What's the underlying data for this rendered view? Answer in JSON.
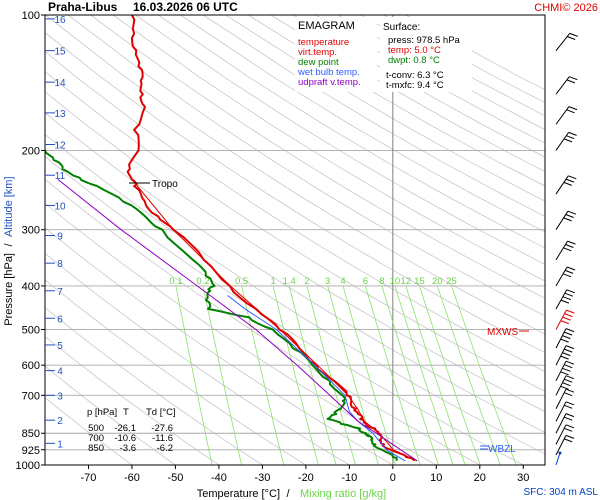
{
  "header": {
    "station": "Praha-Libus",
    "datetime": "16.03.2026 06 UTC",
    "credit": "CHMI© 2026"
  },
  "legend": {
    "title": "EMAGRAM",
    "items": [
      {
        "label": "temperature",
        "color": "#e00000"
      },
      {
        "label": "virt.temp.",
        "color": "#e00000"
      },
      {
        "label": "dew point",
        "color": "#008000"
      },
      {
        "label": "wet bulb temp.",
        "color": "#3060ff"
      },
      {
        "label": "udpraft v.temp.",
        "color": "#9000c0"
      }
    ]
  },
  "surface": {
    "title": "Surface:",
    "press": "press: 978.5 hPa",
    "temp": "temp: 5.0 °C",
    "dwpt": "dwpt: 0.8 °C",
    "tconv": "t-conv: 6.3 °C",
    "tmxfc": "t-mxfc: 9.4 °C"
  },
  "table": {
    "header": [
      "p [hPa]",
      "T",
      "Td [°C]"
    ],
    "rows": [
      [
        "500",
        "-26.1",
        "-27.6"
      ],
      [
        "700",
        "-10.6",
        "-11.6"
      ],
      [
        "850",
        "-3.6",
        "-6.2"
      ]
    ]
  },
  "annotations": {
    "tropo": "Tropo",
    "mxws": "MXWS",
    "wbzl": "WBZL",
    "sfc": "SFC: 304 m ASL"
  },
  "chart_data": {
    "type": "line",
    "title": "EMAGRAM",
    "xlabel": "Temperature [°C]",
    "xlabel2": "Mixing ratio [g/kg]",
    "ylabel": "Pressure [hPa]",
    "ylabel2": "Altitude [km]",
    "separator": "/",
    "xlim": [
      -80,
      35
    ],
    "ylim": [
      1000,
      100
    ],
    "x_ticks": [
      -70,
      -60,
      -50,
      -40,
      -30,
      -20,
      -10,
      0,
      10,
      20,
      30
    ],
    "pressure_ticks": [
      100,
      200,
      300,
      400,
      500,
      600,
      700,
      850,
      925,
      1000
    ],
    "altitude_ticks": [
      {
        "km": 1,
        "p": 895
      },
      {
        "km": 2,
        "p": 795
      },
      {
        "km": 3,
        "p": 700
      },
      {
        "km": 4,
        "p": 617
      },
      {
        "km": 5,
        "p": 541
      },
      {
        "km": 6,
        "p": 472
      },
      {
        "km": 7,
        "p": 410
      },
      {
        "km": 8,
        "p": 356
      },
      {
        "km": 9,
        "p": 309
      },
      {
        "km": 10,
        "p": 265
      },
      {
        "km": 11,
        "p": 227
      },
      {
        "km": 12,
        "p": 194
      },
      {
        "km": 13,
        "p": 165
      },
      {
        "km": 14,
        "p": 141
      },
      {
        "km": 15,
        "p": 120
      },
      {
        "km": 16,
        "p": 102
      }
    ],
    "mixing_ratio_labels": [
      "0.1",
      "0.2",
      "0.5",
      "1",
      "1.4",
      "2",
      "3",
      "4",
      "6",
      "8",
      "10",
      "12",
      "15",
      "20",
      "25"
    ],
    "mixing_ratio_values": [
      0.1,
      0.2,
      0.5,
      1,
      1.4,
      2,
      3,
      4,
      6,
      8,
      10,
      12,
      15,
      20,
      25
    ],
    "mixing_ratio_label_pressure": 400,
    "tropopause": {
      "p": 232,
      "t": -60
    },
    "series": [
      {
        "name": "temperature",
        "color": "#e00000",
        "points": [
          [
            978.5,
            5.0
          ],
          [
            960,
            3.0
          ],
          [
            925,
            -0.5
          ],
          [
            900,
            -2.0
          ],
          [
            880,
            -3.0
          ],
          [
            850,
            -3.6
          ],
          [
            830,
            -4.0
          ],
          [
            810,
            -6.0
          ],
          [
            790,
            -7.5
          ],
          [
            770,
            -8.0
          ],
          [
            750,
            -8.5
          ],
          [
            720,
            -9.5
          ],
          [
            700,
            -10.6
          ],
          [
            650,
            -13.5
          ],
          [
            600,
            -17.5
          ],
          [
            550,
            -21.5
          ],
          [
            500,
            -26.1
          ],
          [
            450,
            -31.5
          ],
          [
            400,
            -37.5
          ],
          [
            350,
            -43.5
          ],
          [
            300,
            -50.5
          ],
          [
            280,
            -54.0
          ],
          [
            260,
            -57.0
          ],
          [
            240,
            -59.5
          ],
          [
            232,
            -60.0
          ],
          [
            220,
            -60.5
          ],
          [
            200,
            -58.5
          ],
          [
            180,
            -59.5
          ],
          [
            160,
            -57.0
          ],
          [
            150,
            -57.5
          ],
          [
            140,
            -58.0
          ],
          [
            130,
            -58.5
          ],
          [
            120,
            -59.0
          ],
          [
            110,
            -59.5
          ],
          [
            100,
            -60.0
          ]
        ]
      },
      {
        "name": "virt.temp.",
        "color": "#e00000",
        "points": [
          [
            978.5,
            5.6
          ],
          [
            925,
            0.1
          ],
          [
            850,
            -3.1
          ],
          [
            800,
            -6.5
          ],
          [
            750,
            -8.1
          ],
          [
            700,
            -10.3
          ],
          [
            600,
            -17.3
          ],
          [
            500,
            -26.0
          ],
          [
            400,
            -37.4
          ],
          [
            300,
            -50.5
          ],
          [
            232,
            -60.0
          ]
        ]
      },
      {
        "name": "dew point",
        "color": "#008000",
        "points": [
          [
            978.5,
            0.8
          ],
          [
            960,
            0.0
          ],
          [
            925,
            -2.5
          ],
          [
            900,
            -4.0
          ],
          [
            880,
            -5.0
          ],
          [
            860,
            -6.0
          ],
          [
            850,
            -6.2
          ],
          [
            830,
            -7.5
          ],
          [
            810,
            -12.0
          ],
          [
            790,
            -15.0
          ],
          [
            770,
            -13.0
          ],
          [
            750,
            -12.0
          ],
          [
            720,
            -11.5
          ],
          [
            700,
            -11.6
          ],
          [
            650,
            -14.5
          ],
          [
            600,
            -18.5
          ],
          [
            550,
            -23.0
          ],
          [
            500,
            -27.6
          ],
          [
            470,
            -33.0
          ],
          [
            450,
            -42.5
          ],
          [
            430,
            -43.0
          ],
          [
            410,
            -42.0
          ],
          [
            400,
            -41.0
          ],
          [
            380,
            -43.0
          ],
          [
            350,
            -46.0
          ],
          [
            300,
            -53.0
          ],
          [
            280,
            -57.0
          ],
          [
            260,
            -62.0
          ],
          [
            240,
            -68.0
          ],
          [
            230,
            -72.0
          ],
          [
            220,
            -76.0
          ],
          [
            210,
            -78.0
          ],
          [
            200,
            -80.0
          ]
        ]
      },
      {
        "name": "wet bulb temp.",
        "color": "#3060ff",
        "points": [
          [
            978.5,
            2.8
          ],
          [
            925,
            -1.5
          ],
          [
            850,
            -4.6
          ],
          [
            800,
            -8.0
          ],
          [
            760,
            -10.0
          ],
          [
            700,
            -11.0
          ],
          [
            600,
            -18.0
          ],
          [
            500,
            -26.8
          ],
          [
            450,
            -34.0
          ],
          [
            420,
            -38.0
          ]
        ]
      },
      {
        "name": "udpraft v.temp.",
        "color": "#9000c0",
        "points": [
          [
            978.5,
            5.6
          ],
          [
            925,
            1.8
          ],
          [
            850,
            -3.8
          ],
          [
            800,
            -8.0
          ],
          [
            700,
            -14.5
          ],
          [
            600,
            -22.0
          ],
          [
            500,
            -31.5
          ],
          [
            400,
            -45.0
          ],
          [
            300,
            -62.5
          ],
          [
            232,
            -77.0
          ]
        ]
      }
    ],
    "wind_barbs_pressure": [
      120,
      150,
      175,
      200,
      250,
      300,
      350,
      400,
      450,
      500,
      550,
      600,
      650,
      700,
      750,
      800,
      850,
      900,
      950
    ],
    "max_wind_pressure": 495
  }
}
